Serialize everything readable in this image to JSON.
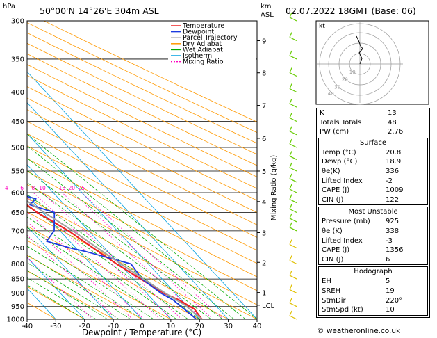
{
  "chart_data": {
    "type": "line",
    "title": "50°00'N  14°26'E  304m  ASL",
    "datetime": "02.07.2022  18GMT  (Base: 06)",
    "xlabel": "Dewpoint / Temperature (°C)",
    "ylabel_left": "hPa",
    "ylabel_right_km": "km\nASL",
    "ylabel_right": "Mixing Ratio (g/kg)",
    "xlim": [
      -40,
      40
    ],
    "pressure_levels": [
      300,
      350,
      400,
      450,
      500,
      550,
      600,
      650,
      700,
      750,
      800,
      850,
      900,
      950,
      1000
    ],
    "x_ticks": [
      -40,
      -30,
      -20,
      -10,
      0,
      10,
      20,
      30,
      40
    ],
    "km_ticks": [
      {
        "km": "9",
        "p": 325
      },
      {
        "km": "8",
        "p": 370
      },
      {
        "km": "7",
        "p": 422
      },
      {
        "km": "6",
        "p": 482
      },
      {
        "km": "5",
        "p": 550
      },
      {
        "km": "4",
        "p": 622
      },
      {
        "km": "3",
        "p": 705
      },
      {
        "km": "2",
        "p": 795
      },
      {
        "km": "1",
        "p": 898
      },
      {
        "km": "LCL",
        "p": 945
      }
    ],
    "mixing_ratio_labels": [
      "1",
      "2",
      "3",
      "4",
      "6",
      "8",
      "10",
      "16",
      "20",
      "25"
    ],
    "legend": [
      "Temperature",
      "Dewpoint",
      "Parcel Trajectory",
      "Dry Adiabat",
      "Wet Adiabat",
      "Isotherm",
      "Mixing Ratio"
    ],
    "colors": {
      "temperature": "#ee2222",
      "dewpoint": "#1a3ae0",
      "parcel": "#a0a0a0",
      "dry_adiabat": "#ff9900",
      "wet_adiabat": "#00aa00",
      "isotherm": "#00a0e0",
      "mixing_ratio": "#ff00c0",
      "wind_barb": "#66cc00"
    },
    "series": [
      {
        "name": "Temperature",
        "points": [
          [
            20.8,
            1000
          ],
          [
            21.5,
            960
          ],
          [
            19,
            925
          ],
          [
            16,
            900
          ],
          [
            12.5,
            850
          ],
          [
            9,
            800
          ],
          [
            6,
            750
          ],
          [
            3,
            700
          ],
          [
            -2,
            650
          ],
          [
            -5,
            600
          ],
          [
            -8,
            550
          ],
          [
            -12,
            500
          ],
          [
            -18,
            450
          ],
          [
            -25,
            400
          ],
          [
            -31,
            350
          ],
          [
            -38,
            300
          ]
        ]
      },
      {
        "name": "Dewpoint",
        "points": [
          [
            18.9,
            1000
          ],
          [
            18,
            960
          ],
          [
            17,
            925
          ],
          [
            15,
            900
          ],
          [
            13,
            850
          ],
          [
            14,
            800
          ],
          [
            2,
            760
          ],
          [
            -2,
            750
          ],
          [
            -8,
            730
          ],
          [
            -2,
            700
          ],
          [
            4,
            650
          ],
          [
            -2,
            630
          ],
          [
            2,
            615
          ],
          [
            -4,
            600
          ],
          [
            0,
            580
          ],
          [
            2,
            560
          ],
          [
            -8,
            540
          ],
          [
            -4,
            500
          ],
          [
            -15,
            480
          ],
          [
            -40,
            400
          ],
          [
            -32,
            360
          ],
          [
            -38,
            350
          ],
          [
            -42,
            320
          ],
          [
            -48,
            300
          ]
        ]
      },
      {
        "name": "Parcel Trajectory",
        "points": [
          [
            20.8,
            1000
          ],
          [
            19.5,
            945
          ],
          [
            16.5,
            900
          ],
          [
            13.5,
            850
          ],
          [
            10.5,
            800
          ],
          [
            7.5,
            750
          ],
          [
            4.5,
            700
          ],
          [
            0.5,
            650
          ],
          [
            -3.5,
            600
          ],
          [
            -8,
            550
          ],
          [
            -13,
            500
          ],
          [
            -19,
            450
          ],
          [
            -26,
            400
          ],
          [
            -34,
            350
          ],
          [
            -43,
            300
          ]
        ]
      }
    ],
    "wind_barbs_p": [
      300,
      325,
      350,
      375,
      400,
      425,
      450,
      475,
      500,
      525,
      550,
      575,
      600,
      625,
      650,
      675,
      700,
      750,
      800,
      850,
      900,
      950,
      1000
    ],
    "hodograph": {
      "label": "kt",
      "rings": [
        "10",
        "20",
        "30",
        "40"
      ]
    }
  },
  "indices": {
    "rows": [
      {
        "label": "K",
        "value": "13"
      },
      {
        "label": "Totals Totals",
        "value": "48"
      },
      {
        "label": "PW (cm)",
        "value": "2.76"
      }
    ]
  },
  "surface": {
    "header": "Surface",
    "rows": [
      {
        "label": "Temp (°C)",
        "value": "20.8"
      },
      {
        "label": "Dewp (°C)",
        "value": "18.9"
      },
      {
        "label": "θe(K)",
        "value": "336"
      },
      {
        "label": "Lifted Index",
        "value": "-2"
      },
      {
        "label": "CAPE (J)",
        "value": "1009"
      },
      {
        "label": "CIN (J)",
        "value": "122"
      }
    ]
  },
  "most_unstable": {
    "header": "Most Unstable",
    "rows": [
      {
        "label": "Pressure (mb)",
        "value": "925"
      },
      {
        "label": "θe (K)",
        "value": "338"
      },
      {
        "label": "Lifted Index",
        "value": "-3"
      },
      {
        "label": "CAPE (J)",
        "value": "1356"
      },
      {
        "label": "CIN (J)",
        "value": "6"
      }
    ]
  },
  "hodograph_table": {
    "header": "Hodograph",
    "rows": [
      {
        "label": "EH",
        "value": "5"
      },
      {
        "label": "SREH",
        "value": "19"
      },
      {
        "label": "StmDir",
        "value": "220°"
      },
      {
        "label": "StmSpd (kt)",
        "value": "10"
      }
    ]
  },
  "credit": "© weatheronline.co.uk"
}
